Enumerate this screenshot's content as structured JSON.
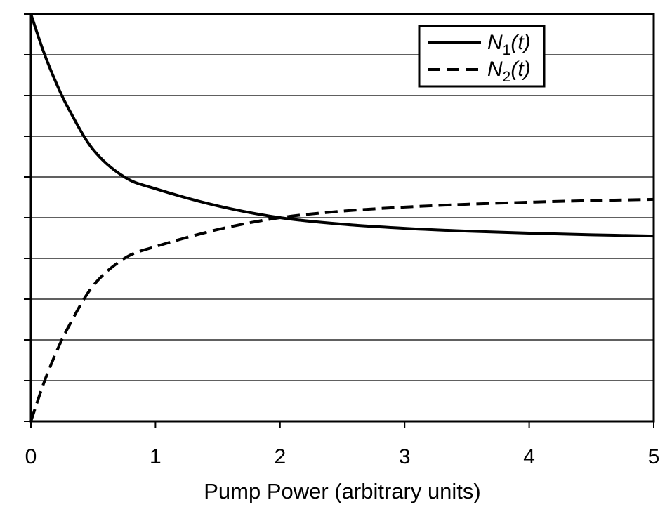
{
  "chart_data": {
    "type": "line",
    "title": "",
    "xlabel": "Pump Power (arbitrary units)",
    "ylabel": "",
    "xlim": [
      0,
      5
    ],
    "ylim": [
      0,
      1
    ],
    "xticks": [
      0,
      1,
      2,
      3,
      4,
      5
    ],
    "yticks_count": 11,
    "y_tick_labels_shown": false,
    "grid": "horizontal",
    "legend_position": "top-right",
    "series": [
      {
        "name": "N1(t)",
        "legend": {
          "main": "N",
          "sub": "1",
          "arg": "(t)"
        },
        "style": "solid",
        "color": "#000000",
        "x": [
          0,
          0.1,
          0.2,
          0.3,
          0.5,
          0.75,
          1,
          1.5,
          2,
          2.5,
          3,
          3.5,
          4,
          4.5,
          5
        ],
        "y": [
          1.0,
          0.909,
          0.833,
          0.769,
          0.667,
          0.6,
          0.571,
          0.529,
          0.5,
          0.484,
          0.474,
          0.467,
          0.462,
          0.458,
          0.455
        ]
      },
      {
        "name": "N2(t)",
        "legend": {
          "main": "N",
          "sub": "2",
          "arg": "(t)"
        },
        "style": "dashed",
        "color": "#000000",
        "x": [
          0,
          0.1,
          0.2,
          0.3,
          0.5,
          0.75,
          1,
          1.5,
          2,
          2.5,
          3,
          3.5,
          4,
          4.5,
          5
        ],
        "y": [
          0.0,
          0.091,
          0.167,
          0.231,
          0.333,
          0.4,
          0.429,
          0.471,
          0.5,
          0.516,
          0.526,
          0.533,
          0.538,
          0.542,
          0.545
        ]
      }
    ]
  }
}
